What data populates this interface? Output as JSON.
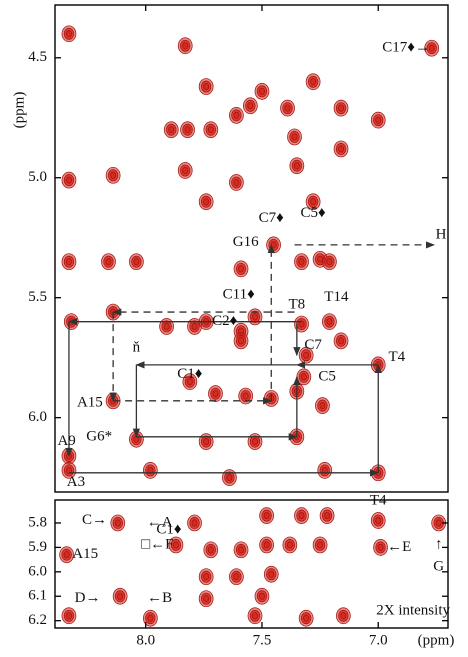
{
  "chart_data": [
    {
      "type": "scatter",
      "color": "#d42a20",
      "y_label": "(ppm)",
      "xlim": [
        8.39,
        6.7
      ],
      "ylim": [
        4.28,
        6.31
      ],
      "yticks": [
        4.5,
        {
          "value": 5.0,
          "label": "5.0"
        },
        5.5,
        {
          "value": 6.0,
          "label": "6.0"
        }
      ],
      "x": [
        8.33,
        7.83,
        6.77,
        7.74,
        7.5,
        7.28,
        7.89,
        7.82,
        7.72,
        7.61,
        7.55,
        7.16,
        7.0,
        7.39,
        7.36,
        8.33,
        8.14,
        7.83,
        7.61,
        7.74,
        7.35,
        7.28,
        7.16,
        7.25,
        7.33,
        7.21,
        7.45,
        8.33,
        7.59,
        8.16,
        8.04,
        8.32,
        8.14,
        7.91,
        7.79,
        7.74,
        7.59,
        7.53,
        7.33,
        7.21,
        7.59,
        7.31,
        7.16,
        7.0,
        7.32,
        8.14,
        7.81,
        7.7,
        7.57,
        7.46,
        7.35,
        7.24,
        7.74,
        8.04,
        7.53,
        7.35,
        8.33,
        8.33,
        7.0,
        7.98,
        7.64,
        7.23
      ],
      "y": [
        4.4,
        4.45,
        4.46,
        4.62,
        4.64,
        4.6,
        4.8,
        4.8,
        4.8,
        4.74,
        4.7,
        4.71,
        4.76,
        4.71,
        4.83,
        5.01,
        4.99,
        4.97,
        5.02,
        5.1,
        4.95,
        5.1,
        4.88,
        5.34,
        5.35,
        5.35,
        5.28,
        5.35,
        5.38,
        5.35,
        5.35,
        5.6,
        5.56,
        5.62,
        5.62,
        5.6,
        5.64,
        5.58,
        5.61,
        5.6,
        5.68,
        5.74,
        5.68,
        5.78,
        5.83,
        5.93,
        5.85,
        5.9,
        5.91,
        5.92,
        5.89,
        5.95,
        6.1,
        6.09,
        6.1,
        6.08,
        6.16,
        6.22,
        6.23,
        6.22,
        6.25,
        6.22
      ],
      "annotations": [
        {
          "text": "C17♦→",
          "x": 6.88,
          "y": 4.46
        },
        {
          "text": "H",
          "x": 6.73,
          "y": 5.24
        },
        {
          "text": "C7♦",
          "x": 7.46,
          "y": 5.17
        },
        {
          "text": "C5♦",
          "x": 7.28,
          "y": 5.15
        },
        {
          "text": "G16",
          "x": 7.57,
          "y": 5.27
        },
        {
          "text": "C11♦",
          "x": 7.6,
          "y": 5.49
        },
        {
          "text": "T8",
          "x": 7.35,
          "y": 5.53
        },
        {
          "text": "T14",
          "x": 7.18,
          "y": 5.5
        },
        {
          "text": "C2♦",
          "x": 7.66,
          "y": 5.6
        },
        {
          "text": "C7",
          "x": 7.28,
          "y": 5.7
        },
        {
          "text": "T4",
          "x": 6.92,
          "y": 5.75
        },
        {
          "text": "C5",
          "x": 7.22,
          "y": 5.83
        },
        {
          "text": "ň",
          "x": 8.04,
          "y": 5.71
        },
        {
          "text": "C1♦",
          "x": 7.81,
          "y": 5.82
        },
        {
          "text": "A15",
          "x": 8.24,
          "y": 5.94
        },
        {
          "text": "G6*",
          "x": 8.2,
          "y": 6.08
        },
        {
          "text": "A9",
          "x": 8.34,
          "y": 6.1
        },
        {
          "text": "A3",
          "x": 8.3,
          "y": 6.27
        }
      ],
      "connections": [
        {
          "x": [
            7.33,
            8.33
          ],
          "y": [
            5.6,
            5.6
          ],
          "dashed": false
        },
        {
          "x": [
            8.33,
            8.33
          ],
          "y": [
            5.6,
            6.16
          ],
          "dashed": false
        },
        {
          "x": [
            8.33,
            7.0
          ],
          "y": [
            6.23,
            6.23
          ],
          "dashed": false
        },
        {
          "x": [
            7.0,
            7.0
          ],
          "y": [
            6.23,
            5.78
          ],
          "dashed": false
        },
        {
          "x": [
            7.0,
            7.35
          ],
          "y": [
            5.78,
            5.78
          ],
          "dashed": false
        },
        {
          "x": [
            7.35,
            7.35
          ],
          "y": [
            5.61,
            5.74
          ],
          "dashed": false
        },
        {
          "x": [
            7.35,
            8.04
          ],
          "y": [
            5.78,
            5.78
          ],
          "dashed": false
        },
        {
          "x": [
            8.04,
            8.04
          ],
          "y": [
            5.78,
            6.08
          ],
          "dashed": false
        },
        {
          "x": [
            8.04,
            7.35
          ],
          "y": [
            6.08,
            6.08
          ],
          "dashed": false
        },
        {
          "x": [
            7.35,
            7.35
          ],
          "y": [
            6.08,
            5.83
          ],
          "dashed": false
        },
        {
          "x": [
            7.36,
            8.14
          ],
          "y": [
            5.56,
            5.56
          ],
          "dashed": true
        },
        {
          "x": [
            8.14,
            8.14
          ],
          "y": [
            5.56,
            5.93
          ],
          "dashed": true
        },
        {
          "x": [
            8.14,
            7.46
          ],
          "y": [
            5.93,
            5.93
          ],
          "dashed": true
        },
        {
          "x": [
            7.46,
            7.46
          ],
          "y": [
            5.93,
            5.28
          ],
          "dashed": true
        },
        {
          "x": [
            7.36,
            6.76
          ],
          "y": [
            5.28,
            5.28
          ],
          "dashed": true
        }
      ]
    },
    {
      "type": "scatter",
      "color": "#d42a20",
      "x_label": "(ppm)",
      "xlim": [
        8.39,
        6.7
      ],
      "ylim": [
        5.706,
        6.23
      ],
      "xticks": [
        {
          "value": 8.0,
          "label": "8.0"
        },
        7.5,
        {
          "value": 7.0,
          "label": "7.0"
        }
      ],
      "yticks": [
        5.8,
        5.9,
        {
          "value": 6.0,
          "label": "6.0"
        },
        6.1,
        6.2
      ],
      "x": [
        8.12,
        7.79,
        7.33,
        7.22,
        7.48,
        7.0,
        6.74,
        6.99,
        7.87,
        7.72,
        7.59,
        7.48,
        7.38,
        7.25,
        8.34,
        7.74,
        7.61,
        7.46,
        8.11,
        7.74,
        7.5,
        8.33,
        7.98,
        7.53,
        7.31,
        7.15
      ],
      "y": [
        5.8,
        5.8,
        5.77,
        5.77,
        5.77,
        5.79,
        5.8,
        5.9,
        5.89,
        5.91,
        5.91,
        5.89,
        5.89,
        5.89,
        5.93,
        6.02,
        6.02,
        6.01,
        6.1,
        6.11,
        6.1,
        6.18,
        6.19,
        6.18,
        6.19,
        6.18
      ],
      "annotations": [
        {
          "text": "C→",
          "x": 8.22,
          "y": 5.79
        },
        {
          "text": "←A",
          "x": 7.94,
          "y": 5.8
        },
        {
          "text": "C1♦",
          "x": 7.9,
          "y": 5.83
        },
        {
          "text": "A15",
          "x": 8.26,
          "y": 5.93
        },
        {
          "text": "□←F",
          "x": 7.95,
          "y": 5.89
        },
        {
          "text": "T4",
          "x": 7.0,
          "y": 5.71
        },
        {
          "text": "←E",
          "x": 6.91,
          "y": 5.9
        },
        {
          "text": "↑",
          "x": 6.74,
          "y": 5.89
        },
        {
          "text": "G",
          "x": 6.74,
          "y": 5.98
        },
        {
          "text": "D→",
          "x": 8.25,
          "y": 6.11
        },
        {
          "text": "←B",
          "x": 7.94,
          "y": 6.11
        },
        {
          "text": "2X intensity",
          "x": 6.85,
          "y": 6.16
        }
      ],
      "connections": []
    }
  ]
}
